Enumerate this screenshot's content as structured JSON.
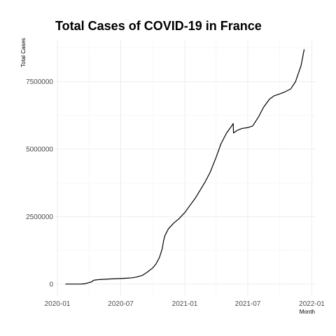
{
  "chart_data": {
    "type": "line",
    "title": "Total Cases of COVID-19 in France",
    "xlabel": "Month",
    "ylabel": "Total Cases",
    "x_ticks": [
      "2020-01",
      "2020-07",
      "2021-01",
      "2021-07",
      "2022-01"
    ],
    "y_ticks": [
      "0",
      "2500000",
      "5000000",
      "7500000"
    ],
    "y_tick_values": [
      0,
      2500000,
      5000000,
      7500000
    ],
    "xlim": [
      "2019-12-26",
      "2022-01-12"
    ],
    "ylim": [
      -420000,
      9050000
    ],
    "grid": true,
    "series": [
      {
        "color": "#000000",
        "points": [
          [
            "2020-01-24",
            3
          ],
          [
            "2020-02-15",
            12
          ],
          [
            "2020-03-01",
            130
          ],
          [
            "2020-03-10",
            1800
          ],
          [
            "2020-03-20",
            12000
          ],
          [
            "2020-03-31",
            52000
          ],
          [
            "2020-04-05",
            70000
          ],
          [
            "2020-04-10",
            90000
          ],
          [
            "2020-04-12",
            130000
          ],
          [
            "2020-04-18",
            150000
          ],
          [
            "2020-05-01",
            168000
          ],
          [
            "2020-06-01",
            190000
          ],
          [
            "2020-07-01",
            205000
          ],
          [
            "2020-07-15",
            215000
          ],
          [
            "2020-08-01",
            230000
          ],
          [
            "2020-08-15",
            260000
          ],
          [
            "2020-09-01",
            320000
          ],
          [
            "2020-09-15",
            440000
          ],
          [
            "2020-10-01",
            600000
          ],
          [
            "2020-10-10",
            740000
          ],
          [
            "2020-10-20",
            980000
          ],
          [
            "2020-10-28",
            1300000
          ],
          [
            "2020-11-01",
            1600000
          ],
          [
            "2020-11-05",
            1800000
          ],
          [
            "2020-11-15",
            2050000
          ],
          [
            "2020-12-01",
            2270000
          ],
          [
            "2020-12-15",
            2420000
          ],
          [
            "2021-01-01",
            2650000
          ],
          [
            "2021-01-15",
            2900000
          ],
          [
            "2021-02-01",
            3200000
          ],
          [
            "2021-02-15",
            3500000
          ],
          [
            "2021-03-01",
            3800000
          ],
          [
            "2021-03-15",
            4150000
          ],
          [
            "2021-04-01",
            4700000
          ],
          [
            "2021-04-15",
            5200000
          ],
          [
            "2021-05-01",
            5600000
          ],
          [
            "2021-05-15",
            5850000
          ],
          [
            "2021-05-20",
            5950000
          ],
          [
            "2021-05-21",
            5600000
          ],
          [
            "2021-06-01",
            5700000
          ],
          [
            "2021-06-15",
            5770000
          ],
          [
            "2021-07-01",
            5800000
          ],
          [
            "2021-07-15",
            5860000
          ],
          [
            "2021-08-01",
            6200000
          ],
          [
            "2021-08-15",
            6550000
          ],
          [
            "2021-09-01",
            6850000
          ],
          [
            "2021-09-15",
            6980000
          ],
          [
            "2021-10-01",
            7050000
          ],
          [
            "2021-10-15",
            7120000
          ],
          [
            "2021-11-01",
            7230000
          ],
          [
            "2021-11-15",
            7500000
          ],
          [
            "2021-12-01",
            8100000
          ],
          [
            "2021-12-10",
            8700000
          ]
        ]
      }
    ]
  }
}
